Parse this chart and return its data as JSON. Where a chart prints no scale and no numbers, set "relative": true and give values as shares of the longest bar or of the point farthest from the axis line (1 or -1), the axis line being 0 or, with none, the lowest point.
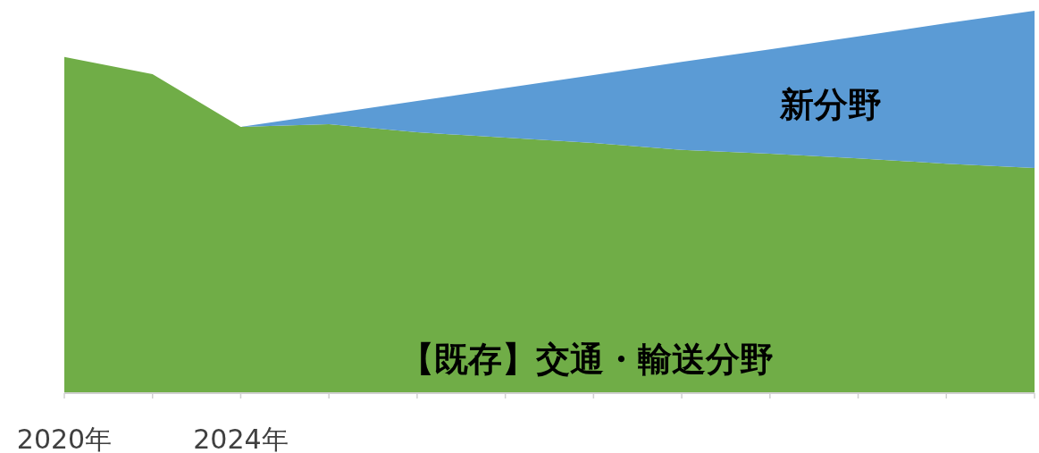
{
  "chart_data": {
    "type": "area",
    "stacked": true,
    "relative": true,
    "legend": false,
    "grid": false,
    "categories": [
      "2020年",
      null,
      "2024年",
      null,
      null,
      null,
      null,
      null,
      null,
      null,
      null,
      null
    ],
    "series": [
      {
        "name": "【既存】交通・輸送分野",
        "color": "#70ad47",
        "values": [
          0.879,
          0.834,
          0.696,
          0.703,
          0.682,
          0.668,
          0.654,
          0.636,
          0.626,
          0.614,
          0.6,
          0.589
        ]
      },
      {
        "name": "新分野",
        "color": "#5b9bd5",
        "values": [
          0,
          0,
          0,
          0.027,
          0.082,
          0.13,
          0.178,
          0.23,
          0.273,
          0.319,
          0.367,
          0.411
        ]
      }
    ]
  }
}
